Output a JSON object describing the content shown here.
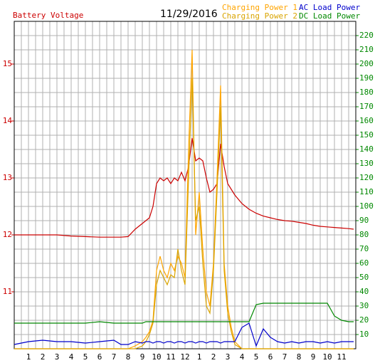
{
  "chart_data": {
    "type": "line",
    "date": "11/29/2016",
    "x": [
      0,
      1,
      2,
      3,
      4,
      5,
      6,
      7,
      7.5,
      8,
      8.5,
      9,
      9.25,
      9.5,
      9.75,
      10,
      10.25,
      10.5,
      10.75,
      11,
      11.25,
      11.5,
      11.75,
      12,
      12.25,
      12.5,
      12.75,
      13,
      13.25,
      13.5,
      13.75,
      14,
      14.25,
      14.5,
      14.75,
      15,
      15.25,
      15.5,
      16,
      16.5,
      17,
      17.5,
      18,
      18.5,
      19,
      19.5,
      20,
      20.5,
      21,
      21.5,
      22,
      22.5,
      23,
      23.5,
      23.85
    ],
    "xlim": [
      0,
      24
    ],
    "xticks": [
      1,
      2,
      3,
      4,
      5,
      6,
      7,
      8,
      9,
      10,
      11,
      12,
      {
        "value": 13,
        "label": "1"
      },
      {
        "value": 14,
        "label": "2"
      },
      {
        "value": 15,
        "label": "3"
      },
      {
        "value": 16,
        "label": "4"
      },
      {
        "value": 17,
        "label": "5"
      },
      {
        "value": 18,
        "label": "6"
      },
      {
        "value": 19,
        "label": "7"
      },
      {
        "value": 20,
        "label": "8"
      },
      {
        "value": 21,
        "label": "9"
      },
      {
        "value": 22,
        "label": "10"
      },
      {
        "value": 23,
        "label": "11"
      }
    ],
    "ylim": [
      10,
      15.75
    ],
    "yticks": [
      11,
      12,
      13,
      14,
      15
    ],
    "y2lim": [
      0,
      230
    ],
    "y2ticks": [
      10,
      20,
      30,
      40,
      50,
      60,
      70,
      80,
      90,
      100,
      110,
      120,
      130,
      140,
      150,
      160,
      170,
      180,
      190,
      200,
      210,
      220
    ],
    "grid": true,
    "series": [
      {
        "name": "Battery Voltage",
        "color": "#cc0000",
        "values": [
          12.0,
          12.0,
          12.0,
          12.0,
          11.98,
          11.97,
          11.96,
          11.96,
          11.96,
          11.97,
          12.1,
          12.2,
          12.25,
          12.3,
          12.5,
          12.9,
          13.0,
          12.95,
          13.0,
          12.9,
          13.0,
          12.95,
          13.1,
          12.95,
          13.2,
          13.7,
          13.3,
          13.35,
          13.3,
          13.0,
          12.75,
          12.8,
          12.9,
          13.6,
          13.2,
          12.9,
          12.8,
          12.7,
          12.55,
          12.45,
          12.38,
          12.33,
          12.3,
          12.27,
          12.25,
          12.24,
          12.22,
          12.2,
          12.17,
          12.15,
          12.14,
          12.13,
          12.12,
          12.11,
          12.1
        ]
      },
      {
        "name": "Charging Power 1",
        "color": "#ffa500",
        "axis": "y2",
        "values": [
          0,
          0,
          0,
          0,
          0,
          0,
          0,
          0,
          0,
          0,
          2,
          5,
          8,
          12,
          20,
          55,
          65,
          55,
          50,
          60,
          55,
          65,
          60,
          50,
          140,
          210,
          80,
          110,
          70,
          40,
          30,
          60,
          120,
          185,
          60,
          30,
          15,
          5,
          0,
          0,
          0,
          0,
          0,
          0,
          0,
          0,
          0,
          0,
          0,
          0,
          0,
          0,
          0,
          0,
          0
        ]
      },
      {
        "name": "Charging Power 2",
        "color": "#d9a400",
        "axis": "y2",
        "values": [
          0,
          0,
          0,
          0,
          0,
          0,
          0,
          0,
          0,
          0,
          0,
          2,
          5,
          10,
          18,
          45,
          55,
          50,
          45,
          52,
          50,
          70,
          55,
          45,
          120,
          190,
          90,
          100,
          60,
          30,
          25,
          55,
          110,
          170,
          55,
          25,
          12,
          3,
          0,
          0,
          0,
          0,
          0,
          0,
          0,
          0,
          0,
          0,
          0,
          0,
          0,
          0,
          0,
          0,
          0
        ]
      },
      {
        "name": "AC Load Power",
        "color": "#0000cc",
        "axis": "y2",
        "values": [
          3,
          5,
          6,
          5,
          5,
          4,
          5,
          6,
          3,
          3,
          5,
          4,
          5,
          5,
          4,
          5,
          5,
          4,
          5,
          5,
          4,
          5,
          5,
          4,
          5,
          5,
          4,
          5,
          5,
          4,
          5,
          5,
          5,
          4,
          5,
          5,
          5,
          5,
          15,
          18,
          2,
          14,
          8,
          5,
          4,
          5,
          4,
          5,
          5,
          4,
          5,
          4,
          5,
          5,
          5
        ]
      },
      {
        "name": "DC Load Power",
        "color": "#008800",
        "axis": "y2",
        "values": [
          18,
          18,
          18,
          18,
          18,
          18,
          19,
          18,
          18,
          18,
          18,
          18,
          19,
          19,
          19,
          19,
          19,
          19,
          19,
          19,
          19,
          19,
          19,
          19,
          19,
          19,
          19,
          19,
          19,
          19,
          19,
          19,
          19,
          19,
          19,
          19,
          19,
          19,
          19,
          19,
          31,
          32,
          32,
          32,
          32,
          32,
          32,
          32,
          32,
          32,
          32,
          23,
          20,
          19,
          19
        ]
      }
    ]
  }
}
